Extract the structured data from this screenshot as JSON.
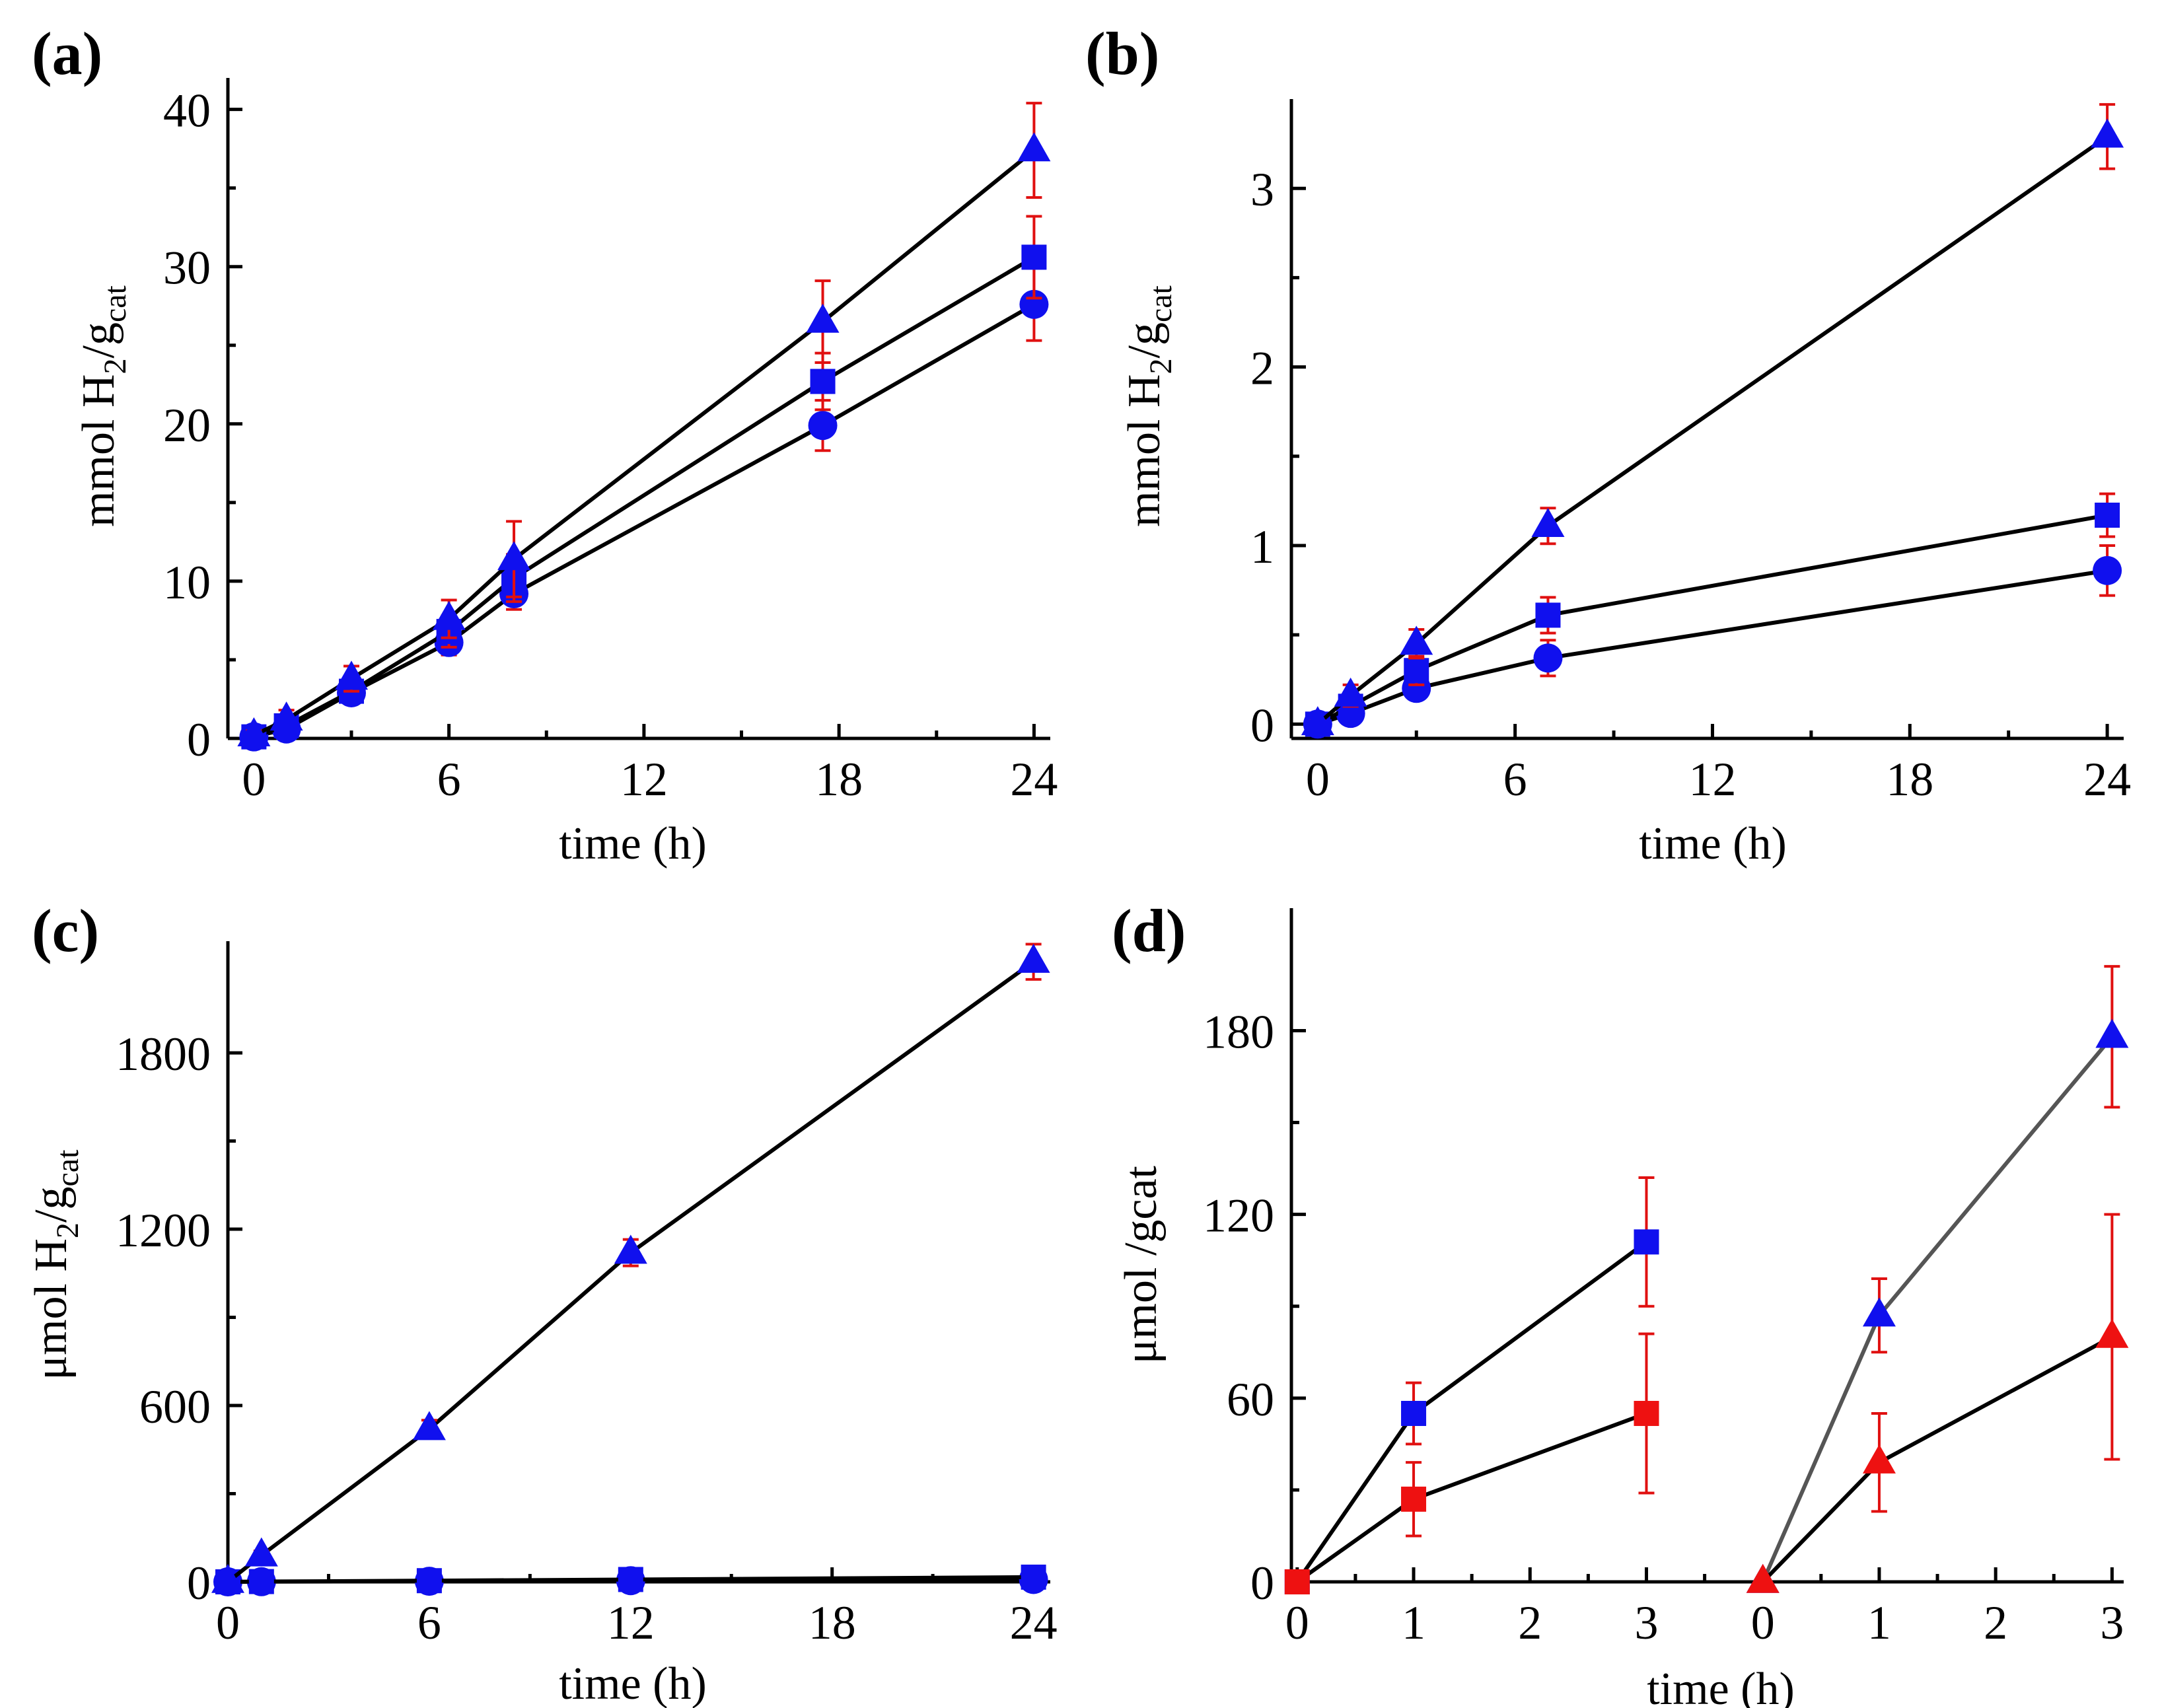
{
  "colors": {
    "marker": "#1010ee",
    "marker_alt": "#ee1111",
    "error_bar": "#e01010",
    "line": "#000000",
    "line_alt": "#555555"
  },
  "chart_data": [
    {
      "id": "a",
      "panel_label": "(a)",
      "type": "line",
      "xlabel": "time (h)",
      "ylabel": {
        "base": "mmol H",
        "sub1": "2",
        "mid": "/g",
        "sub2": "cat"
      },
      "xlim": [
        -0.8,
        24.5
      ],
      "ylim": [
        0,
        42
      ],
      "xticks": [
        0,
        6,
        12,
        18,
        24
      ],
      "xtick_labels": [
        "0",
        "6",
        "12",
        "18",
        "24"
      ],
      "yticks": [
        0,
        10,
        20,
        30,
        40
      ],
      "ytick_labels": [
        "0",
        "10",
        "20",
        "30",
        "40"
      ],
      "series": [
        {
          "name": "circle series",
          "marker": "circle",
          "line_color": "#000000",
          "marker_color": "#1010ee",
          "x": [
            0,
            1,
            3,
            6,
            8,
            17.5,
            24
          ],
          "y": [
            0.1,
            0.6,
            2.9,
            6.1,
            9.2,
            19.9,
            27.6
          ],
          "err": [
            0.3,
            0.4,
            0.6,
            0.8,
            1.0,
            1.6,
            2.3
          ]
        },
        {
          "name": "square series",
          "marker": "square",
          "line_color": "#000000",
          "marker_color": "#1010ee",
          "x": [
            0,
            1,
            3,
            6,
            8,
            17.5,
            24
          ],
          "y": [
            0.1,
            0.8,
            3.0,
            6.8,
            10.2,
            22.7,
            30.6
          ],
          "err": [
            0.3,
            0.5,
            0.7,
            1.0,
            1.5,
            1.8,
            2.6
          ]
        },
        {
          "name": "triangle series",
          "marker": "triangle",
          "line_color": "#000000",
          "marker_color": "#1010ee",
          "x": [
            0,
            1,
            3,
            6,
            8,
            17.5,
            24
          ],
          "y": [
            0.2,
            1.2,
            3.8,
            7.6,
            11.4,
            26.5,
            37.4
          ],
          "err": [
            0.3,
            0.6,
            0.8,
            1.2,
            2.4,
            2.6,
            3.0
          ]
        }
      ]
    },
    {
      "id": "b",
      "panel_label": "(b)",
      "type": "line",
      "xlabel": "time (h)",
      "ylabel": {
        "base": "mmol H",
        "sub1": "2",
        "mid": "/g",
        "sub2": "cat"
      },
      "xlim": [
        -0.8,
        24.5
      ],
      "ylim": [
        -0.08,
        3.5
      ],
      "xticks": [
        0,
        6,
        12,
        18,
        24
      ],
      "xtick_labels": [
        "0",
        "6",
        "12",
        "18",
        "24"
      ],
      "yticks": [
        0,
        1,
        2,
        3
      ],
      "ytick_labels": [
        "0",
        "1",
        "2",
        "3"
      ],
      "series": [
        {
          "name": "circle series",
          "marker": "circle",
          "line_color": "#000000",
          "marker_color": "#1010ee",
          "x": [
            0,
            1,
            3,
            7,
            24
          ],
          "y": [
            0,
            0.06,
            0.2,
            0.37,
            0.86
          ],
          "err": [
            0.02,
            0.04,
            0.06,
            0.1,
            0.14
          ]
        },
        {
          "name": "square series",
          "marker": "square",
          "line_color": "#000000",
          "marker_color": "#1010ee",
          "x": [
            0,
            1,
            3,
            7,
            24
          ],
          "y": [
            0,
            0.1,
            0.3,
            0.61,
            1.17
          ],
          "err": [
            0.02,
            0.05,
            0.08,
            0.1,
            0.12
          ]
        },
        {
          "name": "triangle series",
          "marker": "triangle",
          "line_color": "#000000",
          "marker_color": "#1010ee",
          "x": [
            0,
            1,
            3,
            7,
            24
          ],
          "y": [
            0,
            0.16,
            0.45,
            1.11,
            3.29
          ],
          "err": [
            0.02,
            0.06,
            0.08,
            0.1,
            0.18
          ]
        }
      ]
    },
    {
      "id": "c",
      "panel_label": "(c)",
      "type": "line",
      "xlabel": "time (h)",
      "ylabel": {
        "base": "μmol H",
        "sub1": "2",
        "mid": "/g",
        "sub2": "cat"
      },
      "xlim": [
        0,
        24.5
      ],
      "ylim": [
        0,
        2180
      ],
      "xticks": [
        0,
        6,
        12,
        18,
        24
      ],
      "xtick_labels": [
        "0",
        "6",
        "12",
        "18",
        "24"
      ],
      "yticks": [
        0,
        600,
        1200,
        1800
      ],
      "ytick_labels": [
        "0",
        "600",
        "1200",
        "1800"
      ],
      "series": [
        {
          "name": "circle series",
          "marker": "circle",
          "line_color": "#000000",
          "marker_color": "#1010ee",
          "x": [
            0,
            1,
            6,
            12,
            24
          ],
          "y": [
            0,
            0.5,
            2,
            4,
            8
          ],
          "err": [
            0,
            0,
            0,
            0,
            0
          ]
        },
        {
          "name": "square series",
          "marker": "square",
          "line_color": "#000000",
          "marker_color": "#1010ee",
          "x": [
            0,
            1,
            6,
            12,
            24
          ],
          "y": [
            0,
            1,
            4,
            8,
            16
          ],
          "err": [
            0,
            0,
            0,
            0,
            0
          ]
        },
        {
          "name": "triangle series",
          "marker": "triangle",
          "line_color": "#000000",
          "marker_color": "#1010ee",
          "x": [
            0,
            1,
            6,
            12,
            24
          ],
          "y": [
            0,
            90,
            520,
            1120,
            2110
          ],
          "err": [
            0,
            15,
            30,
            45,
            60
          ]
        }
      ]
    },
    {
      "id": "d",
      "panel_label": "(d)",
      "type": "line",
      "xlabel": "time (h)",
      "ylabel": {
        "base": "μmol /gcat",
        "sub1": "",
        "mid": "",
        "sub2": ""
      },
      "xlim": [
        -0.05,
        7.1
      ],
      "ylim": [
        0,
        220
      ],
      "xticks": [
        0,
        1,
        2,
        3,
        4,
        5,
        6,
        7
      ],
      "xtick_labels": [
        "0",
        "1",
        "2",
        "3",
        "0",
        "1",
        "2",
        "3"
      ],
      "yticks": [
        0,
        60,
        120,
        180
      ],
      "ytick_labels": [
        "0",
        "60",
        "120",
        "180"
      ],
      "series": [
        {
          "name": "blue square series",
          "marker": "square",
          "line_color": "#000000",
          "marker_color": "#1010ee",
          "x": [
            0,
            1,
            3
          ],
          "y": [
            0,
            55,
            111
          ],
          "err": [
            0,
            10,
            21
          ]
        },
        {
          "name": "red square series",
          "marker": "square",
          "line_color": "#000000",
          "marker_color": "#ee1111",
          "x": [
            0,
            1,
            3
          ],
          "y": [
            0,
            27,
            55
          ],
          "err": [
            0,
            12,
            26
          ]
        },
        {
          "name": "blue triangle series",
          "marker": "triangle",
          "line_color": "#555555",
          "marker_color": "#1010ee",
          "x": [
            4,
            5,
            7
          ],
          "y": [
            0,
            87,
            178
          ],
          "err": [
            0,
            12,
            23
          ]
        },
        {
          "name": "red triangle series",
          "marker": "triangle",
          "line_color": "#000000",
          "marker_color": "#ee1111",
          "x": [
            4,
            5,
            7
          ],
          "y": [
            0,
            39,
            80
          ],
          "err": [
            0,
            16,
            40
          ]
        }
      ]
    }
  ]
}
